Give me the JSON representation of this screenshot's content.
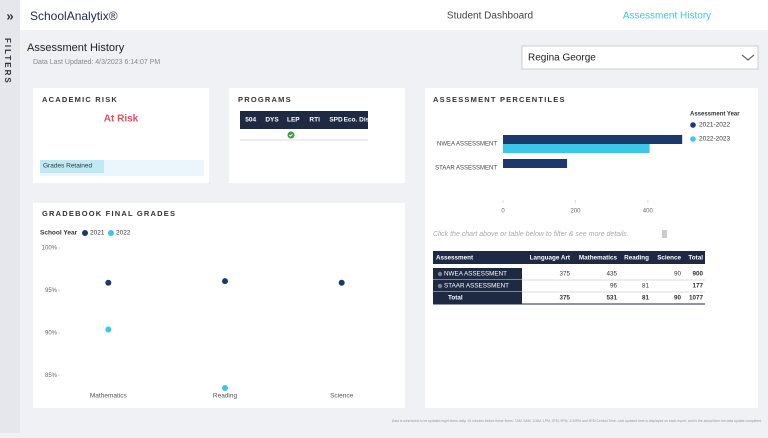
{
  "header": {
    "logo": "SchoolAnalytix®",
    "nav": [
      "Student Dashboard",
      "Assessment History"
    ]
  },
  "sidebar": {
    "toggle": "»",
    "label": "FILTERS"
  },
  "page": {
    "title": "Assessment History",
    "updated": "Data Last Updated: 4/3/2023 6:14:07 PM",
    "student": "Regina George"
  },
  "academic_risk": {
    "title": "ACADEMIC RISK",
    "status": "At Risk",
    "item": "Grades Retained"
  },
  "programs": {
    "title": "PROGRAMS",
    "columns": [
      "504",
      "DYS",
      "LEP",
      "RTI",
      "SPD",
      "Eco. Dis."
    ]
  },
  "gradebook": {
    "title": "GRADEBOOK FINAL GRADES",
    "type": "scatter",
    "legend_title": "School Year",
    "categories": [
      "Mathematics",
      "Reading",
      "Science"
    ],
    "series": [
      {
        "name": "2021",
        "color": "#1b3a6b",
        "values": [
          95.9,
          96.1,
          95.9
        ]
      },
      {
        "name": "2022",
        "color": "#3cc6e8",
        "values": [
          90.4,
          83.5,
          null
        ]
      }
    ],
    "ylim": [
      83.5,
      100
    ],
    "yticks": [
      {
        "value": 85,
        "label": "85%"
      },
      {
        "value": 90,
        "label": "90%"
      },
      {
        "value": 95,
        "label": "95%"
      },
      {
        "value": 100,
        "label": "100%"
      }
    ]
  },
  "percentiles": {
    "title": "ASSESSMENT PERCENTILES",
    "type": "bar",
    "orientation": "horizontal",
    "legend_title": "Assessment Year",
    "categories": [
      "NWEA ASSESSMENT",
      "STAAR ASSESSMENT"
    ],
    "series": [
      {
        "name": "2021-2022",
        "color": "#1b3a6b",
        "values": [
          495,
          177
        ]
      },
      {
        "name": "2022-2023",
        "color": "#3cc6e8",
        "values": [
          405,
          null
        ]
      }
    ],
    "xlim": [
      0,
      500
    ],
    "xticks": [
      0,
      200,
      400
    ]
  },
  "hint": "Click the chart above or table below to filter & see more details.",
  "table": {
    "columns": [
      "Assessment",
      "Language Art",
      "Mathematics",
      "Reading",
      "Science",
      "Total"
    ],
    "rows": [
      [
        "NWEA ASSESSMENT",
        375,
        435,
        null,
        90,
        900
      ],
      [
        "STAAR ASSESSMENT",
        null,
        96,
        81,
        null,
        177
      ],
      [
        "Total",
        375,
        531,
        81,
        90,
        1077
      ]
    ]
  },
  "footer": "Data is scheduled to be updated eight times daily, 15 minutes before these times: 7AM, 9AM, 11AM, 1PM, 3PM, 5PM, 3:30PM and 9PM Central Time. Last updated time is displayed on each report, and is the actual time the data update completed."
}
